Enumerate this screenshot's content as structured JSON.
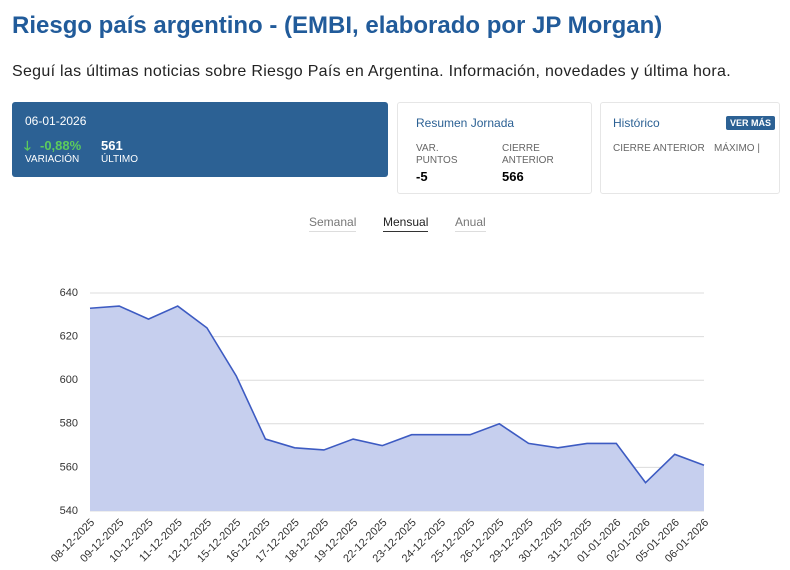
{
  "header": {
    "title": "Riesgo país argentino - (EMBI, elaborado por JP Morgan)",
    "subtitle": "Seguí las últimas noticias sobre Riesgo País en Argentina. Información, novedades y última hora."
  },
  "summary_card": {
    "date": "06-01-2026",
    "change": "-0,88%",
    "change_label": "VARIACIÓN",
    "last": "561",
    "last_label": "ÚLTIMO"
  },
  "day_card": {
    "title": "Resumen Jornada",
    "points_label": "VAR. PUNTOS",
    "points": "-5",
    "prev_label": "CIERRE ANTERIOR",
    "prev": "566"
  },
  "history_card": {
    "title": "Histórico",
    "button": "VER MÁS",
    "col1": "CIERRE ANTERIOR",
    "col2": "MÁXIMO |"
  },
  "tabs": [
    "Semanal",
    "Mensual",
    "Anual"
  ],
  "chart_data": {
    "type": "area",
    "categories": [
      "08-12-2025",
      "09-12-2025",
      "10-12-2025",
      "11-12-2025",
      "12-12-2025",
      "15-12-2025",
      "16-12-2025",
      "17-12-2025",
      "18-12-2025",
      "19-12-2025",
      "22-12-2025",
      "23-12-2025",
      "24-12-2025",
      "25-12-2025",
      "26-12-2025",
      "29-12-2025",
      "30-12-2025",
      "31-12-2025",
      "01-01-2026",
      "02-01-2026",
      "05-01-2026",
      "06-01-2026"
    ],
    "values": [
      633,
      634,
      628,
      634,
      624,
      602,
      573,
      569,
      568,
      573,
      570,
      575,
      575,
      575,
      580,
      571,
      569,
      571,
      571,
      553,
      566,
      561
    ],
    "color": "#3d5bc2",
    "fill": "#c6cfee",
    "ylim": [
      540,
      640
    ],
    "yticks": [
      540,
      560,
      580,
      600,
      620,
      640
    ],
    "grid": true
  }
}
